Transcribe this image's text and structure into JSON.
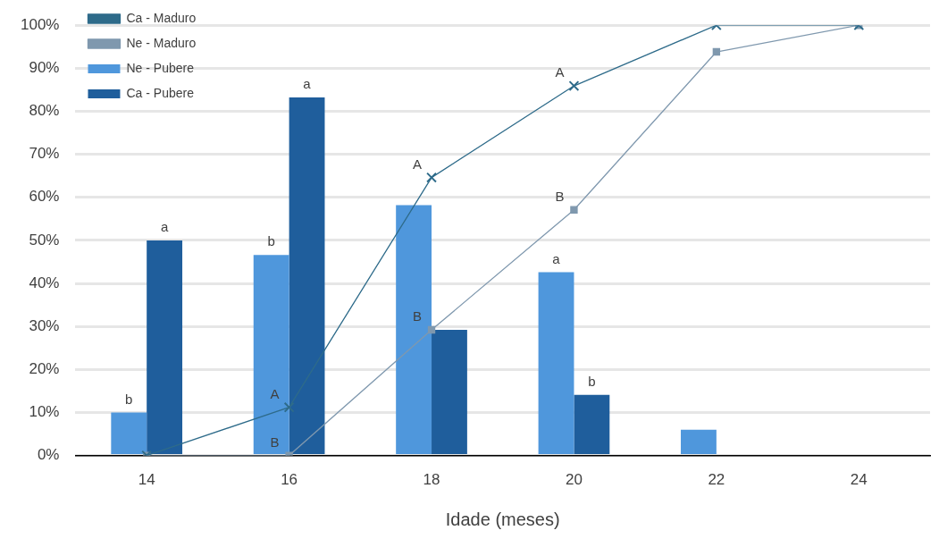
{
  "chart_data": {
    "type": "bar",
    "xlabel": "Idade (meses)",
    "categories": [
      "14",
      "16",
      "18",
      "20",
      "22",
      "24"
    ],
    "series": [
      {
        "name": "Ne - Pubere",
        "color": "#4f97dc",
        "values": [
          10,
          46.6,
          58.2,
          42.6,
          6,
          null
        ]
      },
      {
        "name": "Ca - Pubere",
        "color": "#1f5e9c",
        "values": [
          50,
          83.2,
          29.2,
          14.1,
          null,
          null
        ]
      },
      {
        "name": "Ne - Maduro",
        "type": "line",
        "color": "#7f98ae",
        "marker": "square",
        "values": [
          0,
          0,
          29.2,
          57.1,
          93.8,
          100
        ]
      },
      {
        "name": "Ca - Maduro",
        "type": "line",
        "color": "#2e6b8a",
        "marker": "cross",
        "values": [
          0,
          11.2,
          64.6,
          85.9,
          100,
          100
        ]
      }
    ],
    "ylim": [
      0,
      100
    ],
    "yticks": [
      {
        "value": 0,
        "label": "0%"
      },
      {
        "value": 10,
        "label": "10%"
      },
      {
        "value": 20,
        "label": "20%"
      },
      {
        "value": 30,
        "label": "30%"
      },
      {
        "value": 40,
        "label": "40%"
      },
      {
        "value": 50,
        "label": "50%"
      },
      {
        "value": 60,
        "label": "60%"
      },
      {
        "value": 70,
        "label": "70%"
      },
      {
        "value": 80,
        "label": "80%"
      },
      {
        "value": 90,
        "label": "90%"
      },
      {
        "value": 100,
        "label": "100%"
      }
    ],
    "grid": "y",
    "legend": "top left",
    "annotations": [
      {
        "text": "b",
        "x": "14",
        "y": 10
      },
      {
        "text": "a",
        "x": "14",
        "y": 50
      },
      {
        "text": "b",
        "x": "16",
        "y": 46.6
      },
      {
        "text": "a",
        "x": "16",
        "y": 83.2
      },
      {
        "text": "A",
        "x": "16",
        "y": 11.2
      },
      {
        "text": "B",
        "x": "16",
        "y": 0
      },
      {
        "text": "B",
        "x": "18",
        "y": 29.2
      },
      {
        "text": "A",
        "x": "18",
        "y": 64.6
      },
      {
        "text": "a",
        "x": "20",
        "y": 42.6
      },
      {
        "text": "b",
        "x": "20",
        "y": 14.1
      },
      {
        "text": "A",
        "x": "20",
        "y": 85.9
      },
      {
        "text": "B",
        "x": "20",
        "y": 57.1
      }
    ]
  }
}
